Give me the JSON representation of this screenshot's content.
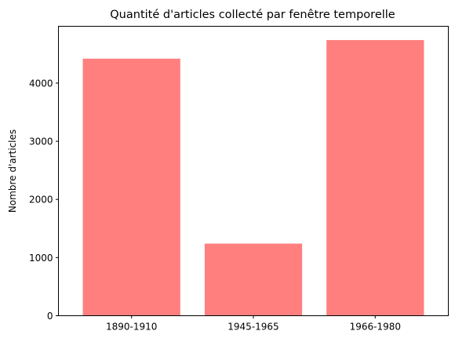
{
  "chart_data": {
    "type": "bar",
    "title": "Quantité d'articles collecté par fenêtre temporelle",
    "xlabel": "",
    "ylabel": "Nombre d'articles",
    "categories": [
      "1890-1910",
      "1945-1965",
      "1966-1980"
    ],
    "values": [
      4420,
      1240,
      4740
    ],
    "ylim": [
      0,
      4977
    ],
    "yticks": [
      0,
      1000,
      2000,
      3000,
      4000
    ],
    "bar_color": "#ff7f7f",
    "grid": false,
    "legend": "none"
  }
}
